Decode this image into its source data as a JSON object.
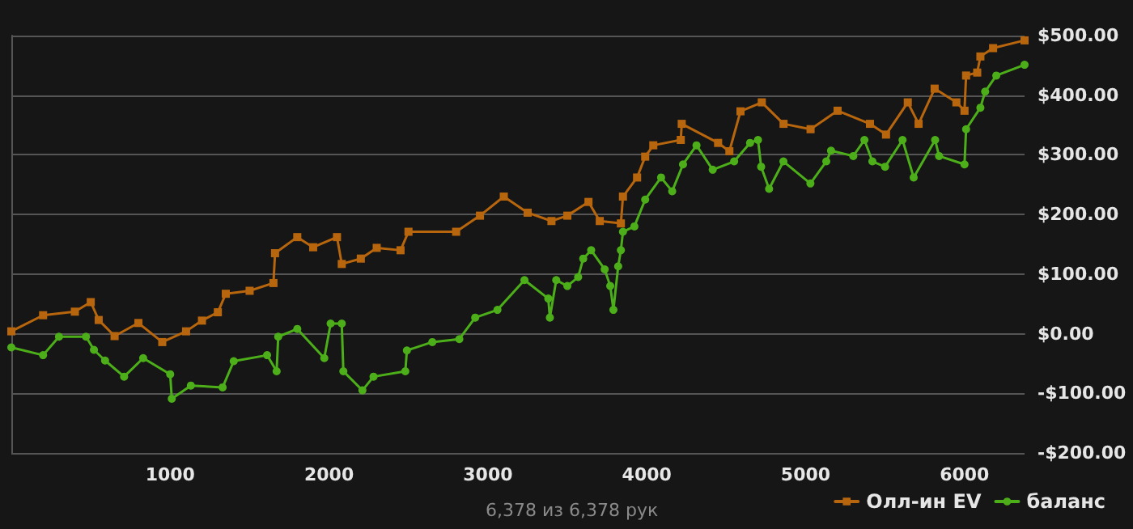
{
  "chart_data": {
    "type": "line",
    "xlim": [
      0,
      6378
    ],
    "xticks": [
      1000,
      2000,
      3000,
      4000,
      5000,
      6000
    ],
    "ylim": [
      -200,
      500
    ],
    "yticks": [
      {
        "value": -200,
        "label": "-$200.00"
      },
      {
        "value": -100,
        "label": "-$100.00"
      },
      {
        "value": 0,
        "label": "$0.00"
      },
      {
        "value": 100,
        "label": "$100.00"
      },
      {
        "value": 200,
        "label": "$200.00"
      },
      {
        "value": 300,
        "label": "$300.00"
      },
      {
        "value": 400,
        "label": "$400.00"
      },
      {
        "value": 500,
        "label": "$500.00"
      }
    ],
    "grid": "y",
    "legend": "bottom right",
    "annotations": [
      "6,378 из 6,378 рук"
    ],
    "series": [
      {
        "name": "Олл-ин EV",
        "color": "#b8660e",
        "marker": "square",
        "x": [
          0,
          200,
          400,
          500,
          550,
          650,
          800,
          950,
          1100,
          1200,
          1300,
          1350,
          1500,
          1650,
          1660,
          1800,
          1900,
          2050,
          2080,
          2200,
          2300,
          2450,
          2500,
          2800,
          2950,
          3100,
          3250,
          3400,
          3500,
          3633,
          3704,
          3837,
          3850,
          3939,
          3990,
          4041,
          4214,
          4220,
          4449,
          4520,
          4590,
          4724,
          4861,
          5031,
          5201,
          5405,
          5506,
          5643,
          5711,
          5812,
          5949,
          6000,
          6010,
          6080,
          6100,
          6180,
          6378
        ],
        "values": [
          4,
          31,
          37,
          53,
          23,
          -4,
          18,
          -14,
          4,
          22,
          36,
          67,
          72,
          85,
          135,
          162,
          145,
          162,
          117,
          126,
          144,
          140,
          171,
          171,
          198,
          230,
          203,
          189,
          198,
          221,
          189,
          185,
          230,
          262,
          297,
          316,
          325,
          352,
          320,
          306,
          373,
          388,
          352,
          343,
          374,
          352,
          334,
          388,
          352,
          411,
          388,
          374,
          433,
          438,
          465,
          479,
          492
        ]
      },
      {
        "name": "баланс",
        "color": "#4caf1a",
        "marker": "circle",
        "x": [
          0,
          200,
          300,
          470,
          520,
          590,
          710,
          830,
          1000,
          1010,
          1130,
          1330,
          1400,
          1610,
          1670,
          1680,
          1800,
          1970,
          2010,
          2080,
          2090,
          2210,
          2280,
          2480,
          2490,
          2650,
          2820,
          2920,
          3060,
          3230,
          3380,
          3390,
          3430,
          3500,
          3568,
          3600,
          3650,
          3735,
          3770,
          3790,
          3820,
          3837,
          3850,
          3922,
          3990,
          4090,
          4160,
          4228,
          4313,
          4415,
          4550,
          4650,
          4700,
          4720,
          4770,
          4860,
          5030,
          5130,
          5160,
          5300,
          5370,
          5420,
          5500,
          5610,
          5680,
          5815,
          5840,
          6000,
          6010,
          6100,
          6130,
          6200,
          6378
        ],
        "values": [
          -23,
          -36,
          -5,
          -5,
          -27,
          -45,
          -72,
          -41,
          -68,
          -109,
          -87,
          -90,
          -46,
          -36,
          -63,
          -5,
          8,
          -41,
          17,
          17,
          -63,
          -95,
          -72,
          -63,
          -28,
          -14,
          -9,
          27,
          40,
          90,
          59,
          27,
          90,
          80,
          95,
          126,
          140,
          108,
          80,
          40,
          113,
          140,
          171,
          180,
          225,
          262,
          239,
          284,
          316,
          275,
          289,
          320,
          325,
          280,
          243,
          289,
          252,
          289,
          307,
          298,
          325,
          289,
          280,
          325,
          262,
          325,
          298,
          284,
          343,
          379,
          406,
          433,
          451
        ]
      }
    ]
  }
}
